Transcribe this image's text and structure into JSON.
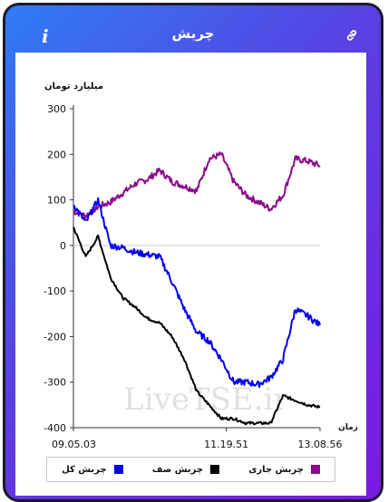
{
  "header": {
    "title": "چربش",
    "info_label": "i"
  },
  "colors": {
    "header_gradient_start": "#2f7cf6",
    "header_gradient_end": "#7b1ae0",
    "current_surplus": "#8b0a8b",
    "zero_surplus": "#000000",
    "total_surplus": "#0000ee"
  },
  "icons": {
    "info": "info-icon",
    "link": "link-icon"
  },
  "watermark": "LiveTSE.ir",
  "chart_data": {
    "type": "line",
    "ylabel": "میلیارد تومان",
    "xlabel": "زمان",
    "ylim": [
      -400,
      300
    ],
    "yticks": [
      300,
      200,
      100,
      0,
      -100,
      -200,
      -300,
      -400
    ],
    "xticks": [
      "09.05.03",
      "11.19.51",
      "13.08.56"
    ],
    "legend_position": "bottom",
    "x": [
      0,
      5,
      10,
      15,
      20,
      25,
      30,
      35,
      40,
      45,
      50,
      55,
      60,
      65,
      70,
      75,
      80,
      85,
      90,
      95,
      100
    ],
    "series": [
      {
        "name": "چربش جاری",
        "color": "#8b0a8b",
        "values": [
          75,
          65,
          85,
          95,
          115,
          135,
          145,
          165,
          140,
          130,
          120,
          190,
          200,
          140,
          110,
          95,
          80,
          110,
          190,
          185,
          175
        ]
      },
      {
        "name": "چربش صف",
        "color": "#000000",
        "values": [
          40,
          -25,
          20,
          -70,
          -115,
          -135,
          -160,
          -170,
          -200,
          -250,
          -320,
          -350,
          -380,
          -380,
          -390,
          -390,
          -390,
          -330,
          -340,
          -350,
          -355
        ]
      },
      {
        "name": "چربش کل",
        "color": "#0000ee",
        "values": [
          90,
          50,
          100,
          0,
          -5,
          -15,
          -20,
          -25,
          -80,
          -140,
          -190,
          -210,
          -250,
          -300,
          -300,
          -305,
          -290,
          -250,
          -140,
          -155,
          -175
        ]
      }
    ]
  }
}
